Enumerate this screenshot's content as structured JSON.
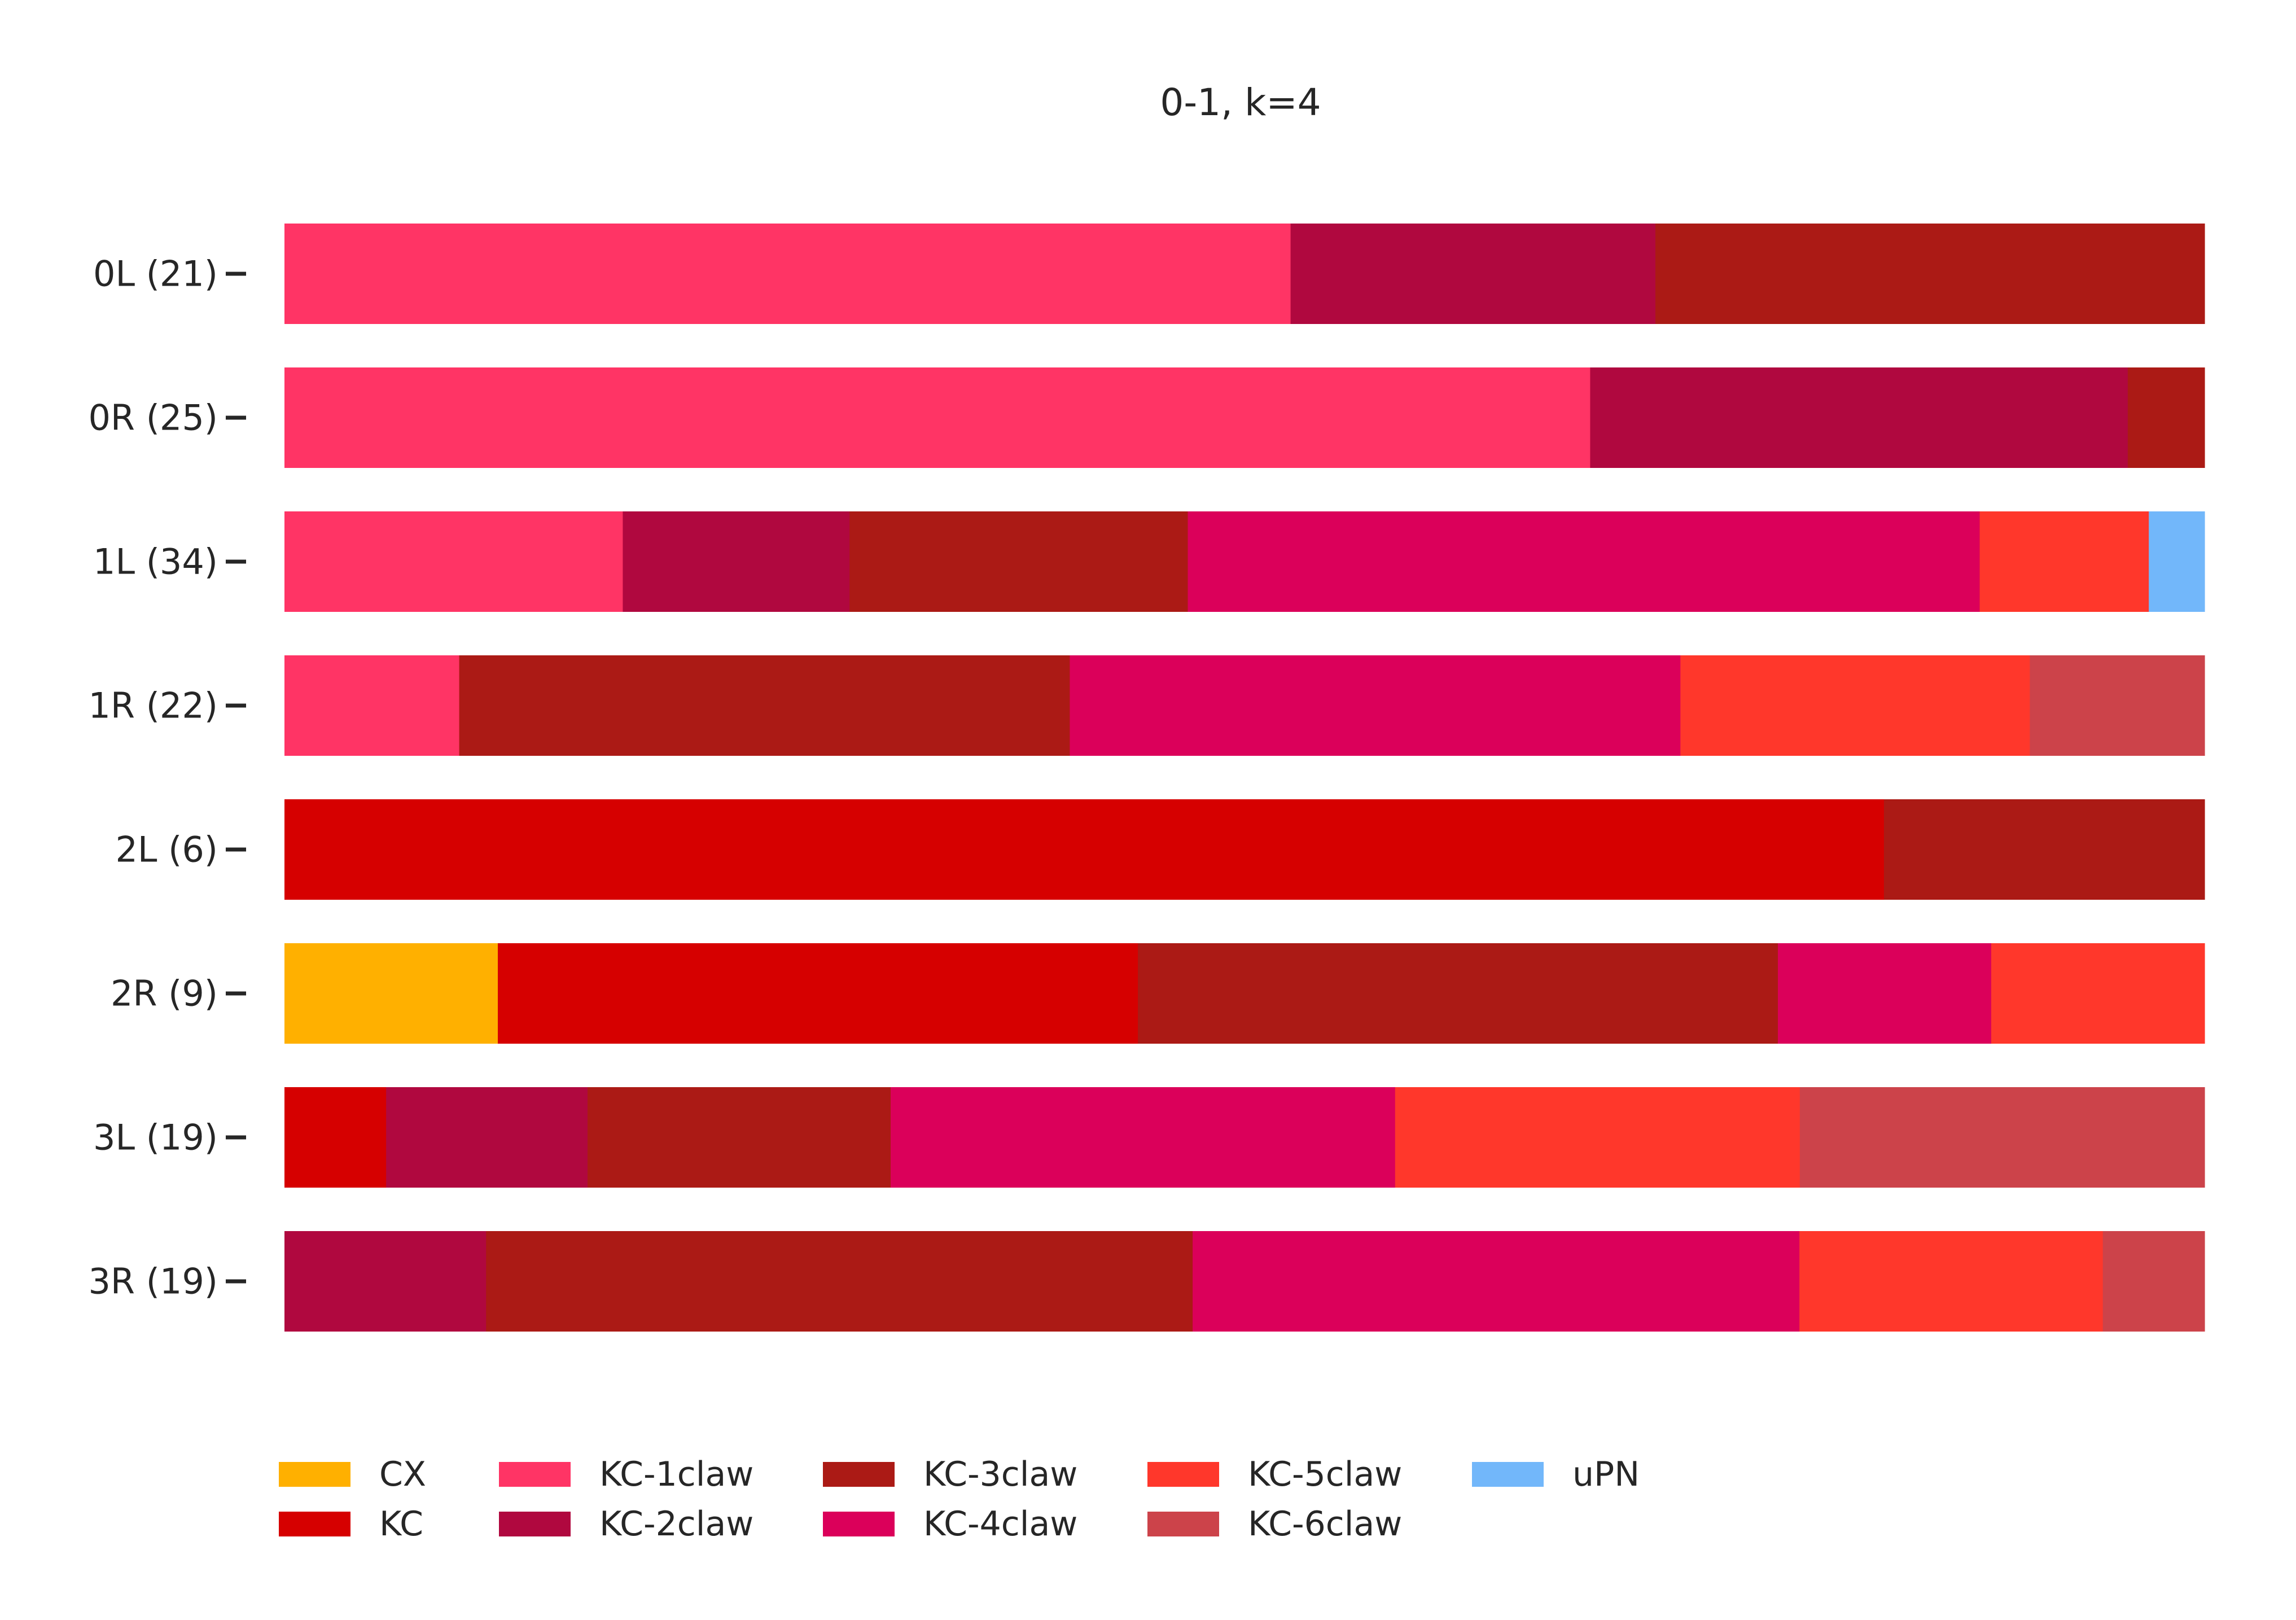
{
  "chart_data": {
    "type": "bar",
    "orientation": "horizontal",
    "stacked": true,
    "normalized": true,
    "title": "0-1, k=4",
    "xlim": [
      0,
      1
    ],
    "grid": false,
    "legend_position": "bottom",
    "categories": [
      "0L (21)",
      "0R (25)",
      "1L (34)",
      "1R (22)",
      "2L (6)",
      "2R (9)",
      "3L (19)",
      "3R (19)"
    ],
    "series": [
      {
        "name": "CX",
        "color": "#ffb000",
        "values": [
          0,
          0,
          0,
          0,
          0,
          0.111,
          0,
          0
        ]
      },
      {
        "name": "KC",
        "color": "#d60000",
        "values": [
          0,
          0,
          0,
          0,
          0.833,
          0.333,
          0.053,
          0
        ]
      },
      {
        "name": "KC-1claw",
        "color": "#ff3465",
        "values": [
          0.524,
          0.68,
          0.176,
          0.091,
          0,
          0,
          0,
          0
        ]
      },
      {
        "name": "KC-2claw",
        "color": "#b0083f",
        "values": [
          0.19,
          0.28,
          0.118,
          0,
          0,
          0,
          0.105,
          0.105
        ]
      },
      {
        "name": "KC-3claw",
        "color": "#ab1a15",
        "values": [
          0.286,
          0.04,
          0.176,
          0.318,
          0.167,
          0.333,
          0.158,
          0.368
        ]
      },
      {
        "name": "KC-4claw",
        "color": "#db005a",
        "values": [
          0,
          0,
          0.412,
          0.318,
          0,
          0.111,
          0.263,
          0.316
        ]
      },
      {
        "name": "KC-5claw",
        "color": "#ff372b",
        "values": [
          0,
          0,
          0.088,
          0.182,
          0,
          0.111,
          0.211,
          0.158
        ]
      },
      {
        "name": "KC-6claw",
        "color": "#cc434a",
        "values": [
          0,
          0,
          0,
          0.091,
          0,
          0,
          0.211,
          0.053
        ]
      },
      {
        "name": "uPN",
        "color": "#72b7fa",
        "values": [
          0,
          0,
          0.029,
          0,
          0,
          0,
          0,
          0
        ]
      }
    ]
  }
}
